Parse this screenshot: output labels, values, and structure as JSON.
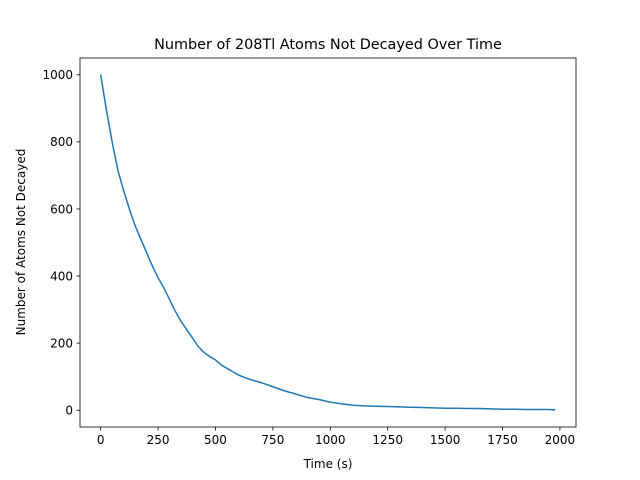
{
  "chart_data": {
    "type": "line",
    "title": "Number of 208Tl Atoms Not Decayed Over Time",
    "xlabel": "Time (s)",
    "ylabel": "Number of Atoms Not Decayed",
    "xlim": [
      -90,
      2070
    ],
    "ylim": [
      -50,
      1050
    ],
    "xticks": [
      0,
      250,
      500,
      750,
      1000,
      1250,
      1500,
      1750,
      2000
    ],
    "yticks": [
      0,
      200,
      400,
      600,
      800,
      1000
    ],
    "grid": false,
    "legend": "none",
    "colors": {
      "line": "#1f77b4"
    },
    "series": [
      {
        "x": [
          0,
          25,
          50,
          75,
          100,
          125,
          150,
          175,
          200,
          225,
          250,
          275,
          300,
          325,
          350,
          375,
          400,
          425,
          450,
          475,
          500,
          525,
          550,
          575,
          600,
          625,
          650,
          700,
          750,
          800,
          850,
          900,
          950,
          1000,
          1050,
          1100,
          1150,
          1200,
          1250,
          1300,
          1350,
          1400,
          1450,
          1500,
          1550,
          1600,
          1650,
          1700,
          1750,
          1800,
          1850,
          1900,
          1950,
          1980
        ],
        "y": [
          1000,
          895,
          800,
          715,
          655,
          600,
          550,
          510,
          470,
          430,
          395,
          365,
          330,
          295,
          265,
          240,
          215,
          190,
          172,
          160,
          150,
          135,
          125,
          115,
          105,
          98,
          92,
          82,
          70,
          58,
          48,
          38,
          32,
          24,
          19,
          15,
          13,
          12,
          11,
          10,
          9,
          8,
          7,
          6,
          6,
          5,
          5,
          4,
          3,
          3,
          2,
          2,
          2,
          1
        ]
      }
    ]
  }
}
